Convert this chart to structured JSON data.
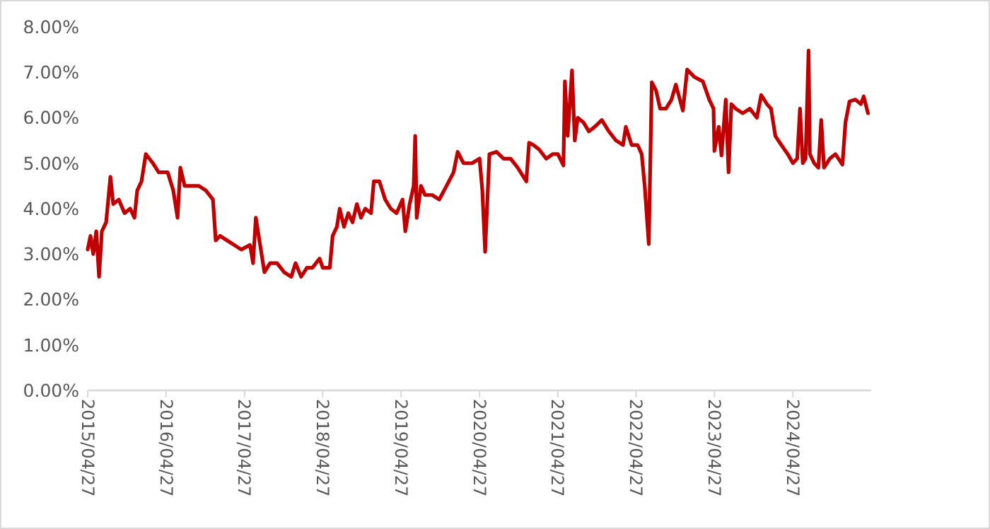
{
  "chart_data": {
    "type": "line",
    "xlim": [
      "2015-04-27",
      "2025-04-27"
    ],
    "ylim": [
      0,
      8
    ],
    "yticks": [
      {
        "value": 0,
        "label": "0.00%"
      },
      {
        "value": 1,
        "label": "1.00%"
      },
      {
        "value": 2,
        "label": "2.00%"
      },
      {
        "value": 3,
        "label": "3.00%"
      },
      {
        "value": 4,
        "label": "4.00%"
      },
      {
        "value": 5,
        "label": "5.00%"
      },
      {
        "value": 6,
        "label": "6.00%"
      },
      {
        "value": 7,
        "label": "7.00%"
      },
      {
        "value": 8,
        "label": "8.00%"
      }
    ],
    "xticks": [
      {
        "value": "2015-04-27",
        "label": "2015/04/27"
      },
      {
        "value": "2016-04-27",
        "label": "2016/04/27"
      },
      {
        "value": "2017-04-27",
        "label": "2017/04/27"
      },
      {
        "value": "2018-04-27",
        "label": "2018/04/27"
      },
      {
        "value": "2019-04-27",
        "label": "2019/04/27"
      },
      {
        "value": "2020-04-27",
        "label": "2020/04/27"
      },
      {
        "value": "2021-04-27",
        "label": "2021/04/27"
      },
      {
        "value": "2022-04-27",
        "label": "2022/04/27"
      },
      {
        "value": "2023-04-27",
        "label": "2023/04/27"
      },
      {
        "value": "2024-04-27",
        "label": "2024/04/27"
      }
    ],
    "grid": false,
    "marker": "none",
    "line_style": "solid",
    "series": [
      {
        "color": "#c00000",
        "x": [
          "2015-04-27",
          "2015-05-10",
          "2015-05-23",
          "2015-06-06",
          "2015-06-19",
          "2015-07-02",
          "2015-07-22",
          "2015-08-11",
          "2015-08-24",
          "2015-09-19",
          "2015-10-16",
          "2015-11-11",
          "2015-12-01",
          "2015-12-14",
          "2016-01-03",
          "2016-01-23",
          "2016-02-25",
          "2016-03-23",
          "2016-05-04",
          "2016-05-30",
          "2016-06-19",
          "2016-07-02",
          "2016-07-22",
          "2016-08-11",
          "2016-09-26",
          "2016-10-29",
          "2016-12-01",
          "2016-12-14",
          "2017-01-03",
          "2017-02-05",
          "2017-03-10",
          "2017-04-12",
          "2017-05-23",
          "2017-06-06",
          "2017-06-19",
          "2017-07-09",
          "2017-07-29",
          "2017-08-24",
          "2017-09-26",
          "2017-10-29",
          "2017-12-01",
          "2017-12-21",
          "2018-01-16",
          "2018-02-12",
          "2018-03-10",
          "2018-04-12",
          "2018-04-27",
          "2018-05-30",
          "2018-06-12",
          "2018-07-02",
          "2018-07-15",
          "2018-08-04",
          "2018-08-24",
          "2018-09-13",
          "2018-10-03",
          "2018-10-22",
          "2018-11-11",
          "2018-12-08",
          "2018-12-21",
          "2019-01-16",
          "2019-02-12",
          "2019-03-10",
          "2019-04-06",
          "2019-05-04",
          "2019-05-17",
          "2019-06-06",
          "2019-06-25",
          "2019-07-02",
          "2019-07-09",
          "2019-07-29",
          "2019-08-17",
          "2019-09-19",
          "2019-10-22",
          "2019-11-25",
          "2019-12-28",
          "2020-01-16",
          "2020-02-12",
          "2020-03-23",
          "2020-04-27",
          "2020-05-10",
          "2020-05-23",
          "2020-06-12",
          "2020-07-15",
          "2020-08-17",
          "2020-09-19",
          "2020-10-22",
          "2020-12-01",
          "2020-12-14",
          "2021-01-03",
          "2021-01-30",
          "2021-03-04",
          "2021-04-03",
          "2021-04-27",
          "2021-05-23",
          "2021-05-30",
          "2021-06-12",
          "2021-07-02",
          "2021-07-15",
          "2021-07-29",
          "2021-08-24",
          "2021-09-19",
          "2021-10-16",
          "2021-11-18",
          "2021-12-21",
          "2022-01-23",
          "2022-02-25",
          "2022-03-10",
          "2022-04-06",
          "2022-05-04",
          "2022-05-23",
          "2022-06-06",
          "2022-06-25",
          "2022-07-09",
          "2022-07-29",
          "2022-08-17",
          "2022-09-13",
          "2022-10-09",
          "2022-10-29",
          "2022-12-01",
          "2022-12-21",
          "2023-01-23",
          "2023-03-04",
          "2023-04-03",
          "2023-04-23",
          "2023-04-27",
          "2023-05-17",
          "2023-05-30",
          "2023-06-19",
          "2023-07-02",
          "2023-07-15",
          "2023-08-04",
          "2023-09-06",
          "2023-10-09",
          "2023-11-11",
          "2023-12-01",
          "2023-12-28",
          "2024-01-16",
          "2024-02-05",
          "2024-03-04",
          "2024-04-03",
          "2024-04-27",
          "2024-05-17",
          "2024-05-30",
          "2024-06-12",
          "2024-06-25",
          "2024-07-09",
          "2024-07-15",
          "2024-08-04",
          "2024-08-24",
          "2024-09-06",
          "2024-09-19",
          "2024-10-16",
          "2024-11-11",
          "2024-12-14",
          "2024-12-28",
          "2025-01-16",
          "2025-02-12",
          "2025-03-10",
          "2025-03-23",
          "2025-04-12"
        ],
        "values": [
          3.1,
          3.4,
          3.0,
          3.5,
          2.5,
          3.5,
          3.7,
          4.7,
          4.1,
          4.2,
          3.9,
          4.0,
          3.8,
          4.4,
          4.6,
          5.2,
          5.0,
          4.8,
          4.8,
          4.4,
          3.8,
          4.9,
          4.5,
          4.5,
          4.5,
          4.4,
          4.2,
          3.3,
          3.4,
          3.3,
          3.2,
          3.1,
          3.2,
          2.8,
          3.8,
          3.2,
          2.6,
          2.8,
          2.8,
          2.6,
          2.5,
          2.8,
          2.5,
          2.7,
          2.7,
          2.9,
          2.7,
          2.7,
          3.4,
          3.6,
          4.0,
          3.6,
          3.9,
          3.7,
          4.1,
          3.8,
          4.0,
          3.9,
          4.6,
          4.6,
          4.2,
          4.0,
          3.9,
          4.2,
          3.5,
          4.1,
          4.5,
          5.6,
          3.8,
          4.5,
          4.3,
          4.3,
          4.2,
          4.5,
          4.8,
          5.25,
          5.0,
          5.0,
          5.1,
          4.4,
          3.05,
          5.2,
          5.25,
          5.1,
          5.1,
          4.9,
          4.6,
          5.45,
          5.4,
          5.3,
          5.1,
          5.2,
          5.2,
          4.95,
          6.8,
          5.6,
          7.04,
          5.5,
          6.0,
          5.9,
          5.7,
          5.8,
          5.95,
          5.7,
          5.5,
          5.4,
          5.8,
          5.4,
          5.4,
          5.2,
          4.5,
          3.22,
          6.78,
          6.6,
          6.2,
          6.2,
          6.4,
          6.73,
          6.16,
          7.06,
          6.9,
          6.8,
          6.4,
          6.2,
          5.27,
          5.8,
          5.17,
          6.4,
          4.8,
          6.3,
          6.2,
          6.1,
          6.2,
          6.0,
          6.5,
          6.3,
          6.2,
          5.6,
          5.4,
          5.2,
          5.0,
          5.1,
          6.2,
          5.0,
          5.1,
          7.48,
          5.2,
          5.0,
          4.9,
          5.95,
          4.9,
          5.1,
          5.2,
          4.97,
          5.9,
          6.36,
          6.4,
          6.3,
          6.47,
          6.1
        ]
      }
    ]
  }
}
